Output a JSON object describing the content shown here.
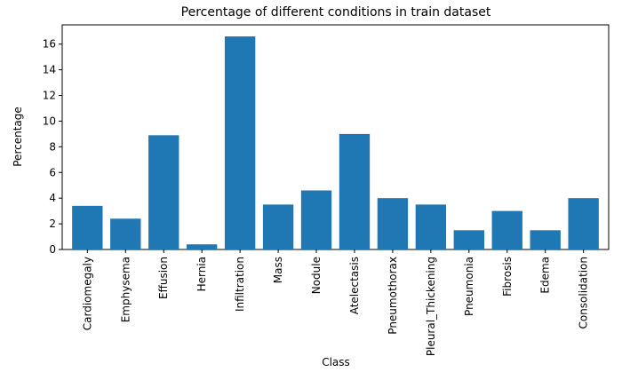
{
  "chart_data": {
    "type": "bar",
    "title": "Percentage of different conditions in train dataset",
    "xlabel": "Class",
    "ylabel": "Percentage",
    "categories": [
      "Cardiomegaly",
      "Emphysema",
      "Effusion",
      "Hernia",
      "Infiltration",
      "Mass",
      "Nodule",
      "Atelectasis",
      "Pneumothorax",
      "Pleural_Thickening",
      "Pneumonia",
      "Fibrosis",
      "Edema",
      "Consolidation"
    ],
    "values": [
      3.4,
      2.4,
      8.9,
      0.4,
      16.6,
      3.5,
      4.6,
      9.0,
      4.0,
      3.5,
      1.5,
      3.0,
      1.5,
      4.0
    ],
    "ylim": [
      0,
      17.5
    ],
    "yticks": [
      0,
      2,
      4,
      6,
      8,
      10,
      12,
      14,
      16
    ],
    "grid": false,
    "bar_color": "#1f77b4"
  }
}
